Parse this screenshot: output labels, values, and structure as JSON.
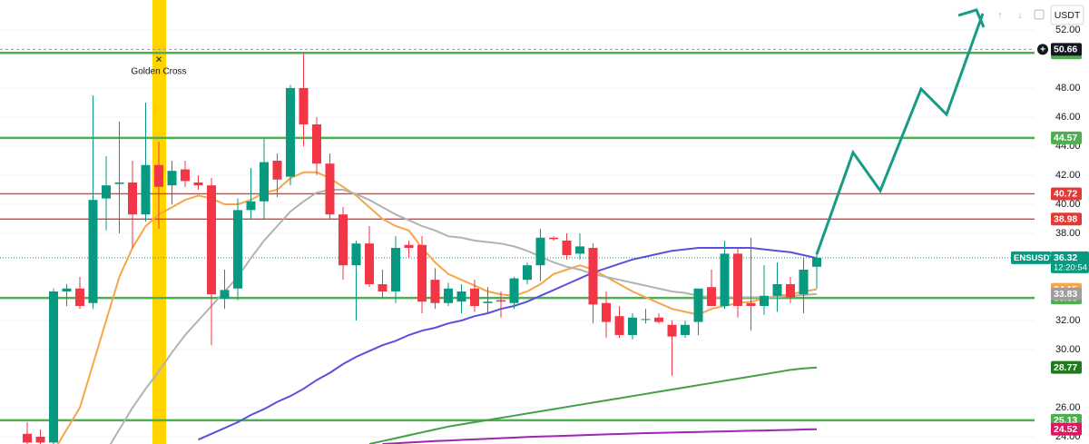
{
  "ui": {
    "currency": "USDT"
  },
  "chart_data": {
    "type": "candlestick",
    "symbol": "ENSUSDT",
    "countdown": "12:20:54",
    "annotation": "Golden Cross",
    "ylim": [
      23.5,
      54.06
    ],
    "yticks": [
      {
        "value": 52,
        "label": "52.00"
      },
      {
        "value": 48,
        "label": "48.00"
      },
      {
        "value": 46,
        "label": "46.00"
      },
      {
        "value": 44,
        "label": "44.00"
      },
      {
        "value": 42,
        "label": "42.00"
      },
      {
        "value": 40,
        "label": "40.00"
      },
      {
        "value": 38,
        "label": "38.00"
      },
      {
        "value": 32,
        "label": "32.00"
      },
      {
        "value": 30,
        "label": "30.00"
      },
      {
        "value": 26,
        "label": "26.00"
      },
      {
        "value": 24,
        "label": "24.00"
      }
    ],
    "grid": true,
    "up_color": "#089981",
    "down_color": "#f23645",
    "candles": {
      "open": [
        24.2,
        24.0,
        23.6,
        34.0,
        34.2,
        33.2,
        40.4,
        41.4,
        41.5,
        39.3,
        42.7,
        41.3,
        42.4,
        41.5,
        41.3,
        33.5,
        34.2,
        39.6,
        40.2,
        43.0,
        41.9,
        48.0,
        45.5,
        42.8,
        39.3,
        35.8,
        37.3,
        34.5,
        34.0,
        37.2,
        37.2,
        34.8,
        33.2,
        33.3,
        34.2,
        33.2,
        33.4,
        33.2,
        34.8,
        35.8,
        37.7,
        37.5,
        36.6,
        37.0,
        33.2,
        32.3,
        31.0,
        32.1,
        32.2,
        31.7,
        31.0,
        31.9,
        34.3,
        33.0,
        36.6,
        33.2,
        33.0,
        33.7,
        34.5,
        33.8,
        35.7
      ],
      "high": [
        25,
        24.5,
        34.2,
        34.5,
        35,
        47.5,
        43.3,
        45.7,
        43,
        47,
        44.3,
        43,
        43,
        42,
        41.8,
        35.5,
        40.4,
        42.5,
        44.5,
        43.5,
        48.2,
        50.4,
        46,
        43.5,
        39.8,
        37.5,
        38.5,
        35.5,
        37.8,
        37.5,
        37.8,
        35.6,
        34.6,
        34.5,
        34.8,
        34.3,
        34,
        35,
        36,
        38.3,
        37.8,
        38,
        38,
        37.3,
        34,
        33,
        32.5,
        32.8,
        32.5,
        32,
        32,
        34,
        35.5,
        37.5,
        37,
        37.7,
        35.8,
        36,
        35,
        36.3,
        36.6
      ],
      "low": [
        23.5,
        23.5,
        23.5,
        33,
        32.8,
        32.8,
        38.2,
        38,
        37,
        38.8,
        38.3,
        40,
        41.2,
        41,
        30.3,
        32.8,
        33.4,
        39,
        39,
        40.5,
        41.3,
        44,
        42,
        39,
        34.8,
        32,
        34.3,
        33.5,
        33.2,
        36.3,
        32.5,
        32.8,
        33,
        32.5,
        32.6,
        32.5,
        32.2,
        32.8,
        34.5,
        34.7,
        37.5,
        36.2,
        36.2,
        31.8,
        30.8,
        30.8,
        30.7,
        31.8,
        31.8,
        28.2,
        30.8,
        31,
        33,
        32.8,
        32.2,
        31.3,
        32.4,
        32.6,
        33.2,
        32.5,
        34.2
      ],
      "close": [
        23.6,
        23.6,
        34.0,
        34.2,
        33.0,
        40.3,
        41.3,
        41.5,
        39.3,
        42.7,
        41.2,
        42.3,
        41.6,
        41.3,
        33.8,
        34.1,
        39.6,
        40.2,
        42.9,
        41.7,
        48.0,
        45.5,
        42.8,
        39.3,
        35.8,
        37.3,
        34.5,
        34.0,
        37.0,
        37.0,
        33.3,
        33.2,
        34.2,
        34.0,
        33.0,
        33.3,
        33.3,
        34.9,
        35.8,
        37.7,
        37.6,
        36.5,
        37.1,
        33.1,
        31.9,
        31.0,
        32.2,
        32.1,
        31.9,
        30.9,
        31.7,
        34.2,
        33.0,
        36.6,
        33.0,
        33.0,
        33.7,
        34.5,
        33.6,
        35.5,
        36.32
      ]
    },
    "series": [
      {
        "color": "#f7a54a",
        "label_color": "#f7a54a",
        "values": [
          null,
          null,
          23.0,
          24.5,
          26,
          29,
          32,
          35,
          37,
          38.5,
          39.3,
          39.8,
          40.3,
          40.6,
          40.4,
          40,
          40,
          40.3,
          40.8,
          41,
          41.8,
          42.2,
          42.2,
          41.8,
          41.2,
          40.6,
          39.8,
          39,
          38.5,
          38.2,
          37,
          36,
          35.2,
          34.8,
          34.4,
          34,
          33.8,
          33.7,
          34,
          34.5,
          35.2,
          35.5,
          35.8,
          35.5,
          35,
          34.5,
          34,
          33.6,
          33.2,
          32.8,
          32.6,
          32.4,
          32.8,
          33,
          33.2,
          33.3,
          33.5,
          33.7,
          33.8,
          34,
          34.15
        ]
      },
      {
        "color": "#b2b2b2",
        "label_color": "#9e9e9e",
        "values": [
          null,
          null,
          null,
          null,
          null,
          null,
          23.0,
          24.5,
          26,
          27.3,
          28.5,
          29.8,
          31,
          32,
          33,
          34,
          35,
          36.3,
          37.5,
          38.5,
          39.5,
          40.2,
          40.8,
          41,
          41,
          40.7,
          40.3,
          39.8,
          39.3,
          38.9,
          38.5,
          38.2,
          37.8,
          37.7,
          37.5,
          37.4,
          37.3,
          37.1,
          36.8,
          36.4,
          36,
          35.7,
          35.5,
          35.2,
          35,
          34.8,
          34.6,
          34.4,
          34.2,
          34,
          33.9,
          33.7,
          33.6,
          33.6,
          33.6,
          33.6,
          33.6,
          33.6,
          33.7,
          33.75,
          33.83
        ]
      },
      {
        "color": "#5b4fdb",
        "label_color": "#2962ff",
        "values": [
          null,
          null,
          null,
          null,
          null,
          null,
          null,
          null,
          null,
          null,
          null,
          null,
          null,
          23.8,
          24.2,
          24.6,
          25.0,
          25.5,
          25.9,
          26.4,
          26.8,
          27.3,
          27.9,
          28.4,
          29.0,
          29.5,
          29.9,
          30.3,
          30.6,
          31.0,
          31.3,
          31.5,
          31.8,
          32.0,
          32.3,
          32.5,
          32.8,
          33.0,
          33.3,
          33.7,
          34.1,
          34.5,
          34.9,
          35.3,
          35.6,
          35.9,
          36.2,
          36.4,
          36.6,
          36.8,
          36.9,
          37.0,
          37.0,
          37.0,
          37.0,
          37.0,
          36.9,
          36.8,
          36.7,
          36.5,
          36.29
        ]
      },
      {
        "color": "#43a047",
        "label_color": "#1e7b1e",
        "values": [
          null,
          null,
          null,
          null,
          null,
          null,
          null,
          null,
          null,
          null,
          null,
          null,
          null,
          null,
          null,
          null,
          null,
          null,
          null,
          null,
          null,
          null,
          null,
          null,
          null,
          null,
          23.5,
          23.7,
          23.9,
          24.1,
          24.3,
          24.5,
          24.7,
          24.85,
          25.0,
          25.15,
          25.3,
          25.45,
          25.6,
          25.75,
          25.9,
          26.05,
          26.2,
          26.35,
          26.5,
          26.65,
          26.8,
          26.95,
          27.1,
          27.25,
          27.4,
          27.55,
          27.7,
          27.85,
          28.0,
          28.15,
          28.3,
          28.45,
          28.6,
          28.7,
          28.77
        ]
      },
      {
        "color": "#9c27b0",
        "label_color": "#d81b60",
        "values": [
          null,
          null,
          null,
          null,
          null,
          null,
          null,
          null,
          null,
          null,
          null,
          null,
          null,
          null,
          null,
          null,
          null,
          null,
          null,
          null,
          null,
          null,
          null,
          null,
          null,
          null,
          null,
          23.5,
          23.55,
          23.6,
          23.65,
          23.7,
          23.74,
          23.78,
          23.82,
          23.86,
          23.9,
          23.94,
          23.98,
          24.01,
          24.04,
          24.07,
          24.1,
          24.13,
          24.16,
          24.19,
          24.22,
          24.25,
          24.27,
          24.29,
          24.31,
          24.33,
          24.35,
          24.37,
          24.39,
          24.41,
          24.43,
          24.45,
          24.47,
          24.5,
          24.52
        ]
      }
    ],
    "levels": [
      {
        "value": 50.42,
        "color": "#4caf50"
      },
      {
        "value": 44.57,
        "color": "#4caf50"
      },
      {
        "value": 40.72,
        "color": "#e53935"
      },
      {
        "value": 38.98,
        "color": "#e53935"
      },
      {
        "value": 33.55,
        "color": "#4caf50"
      },
      {
        "value": 25.13,
        "color": "#4caf50"
      }
    ],
    "cursor_price": 50.66
  }
}
